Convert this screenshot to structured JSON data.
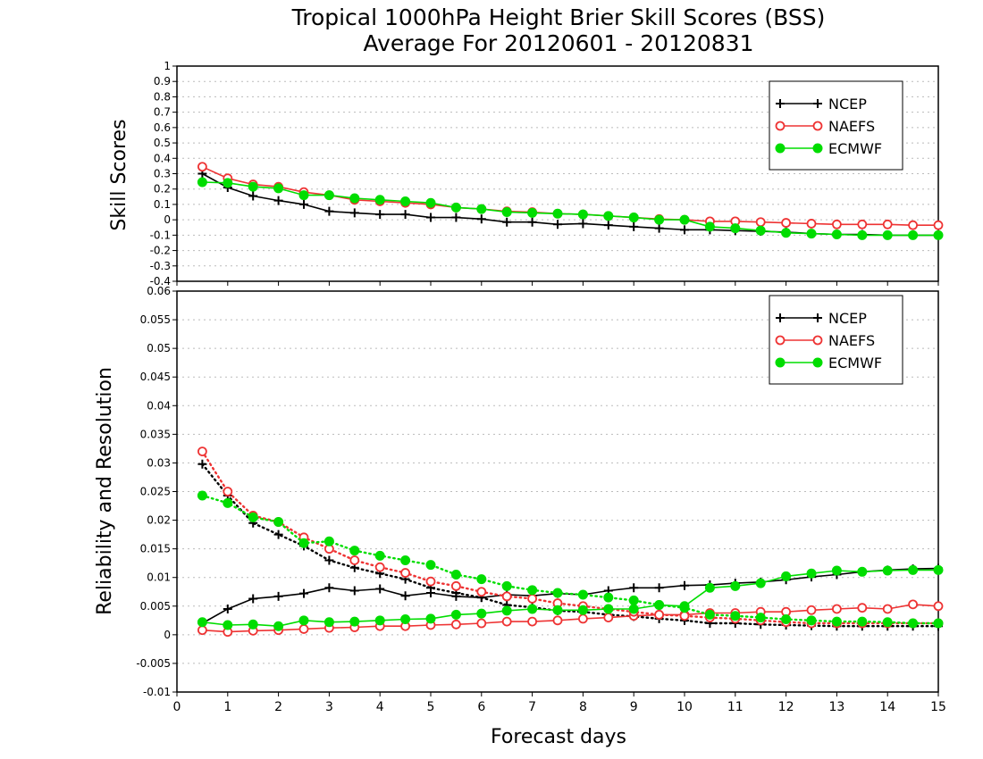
{
  "title_line1": "Tropical 1000hPa Height Brier Skill Scores (BSS)",
  "title_line2": "Average For 20120601 - 20120831",
  "xlabel": "Forecast days",
  "colors": {
    "NCEP": "#000000",
    "NAEFS": "#ee3333",
    "ECMWF": "#00dd00",
    "grid": "#bbbbbb"
  },
  "chart_data": [
    {
      "type": "line",
      "panel": "top",
      "ylabel": "Skill Scores",
      "xlim": [
        0,
        15
      ],
      "ylim": [
        -0.4,
        1
      ],
      "xticks": [
        "0",
        "1",
        "2",
        "3",
        "4",
        "5",
        "6",
        "7",
        "8",
        "9",
        "10",
        "11",
        "12",
        "13",
        "14",
        "15"
      ],
      "yticks": [
        "-0.4",
        "-0.3",
        "-0.2",
        "-0.1",
        "0",
        "0.1",
        "0.2",
        "0.3",
        "0.4",
        "0.5",
        "0.6",
        "0.7",
        "0.8",
        "0.9",
        "1"
      ],
      "grid": true,
      "legend_position": "top-right",
      "x": [
        0.5,
        1,
        1.5,
        2,
        2.5,
        3,
        3.5,
        4,
        4.5,
        5,
        5.5,
        6,
        6.5,
        7,
        7.5,
        8,
        8.5,
        9,
        9.5,
        10,
        10.5,
        11,
        11.5,
        12,
        12.5,
        13,
        13.5,
        14,
        14.5,
        15
      ],
      "series": [
        {
          "name": "NCEP",
          "style": "solid",
          "marker": "plus",
          "values": [
            0.3,
            0.21,
            0.155,
            0.125,
            0.1,
            0.055,
            0.045,
            0.035,
            0.035,
            0.015,
            0.015,
            0.005,
            -0.015,
            -0.015,
            -0.03,
            -0.025,
            -0.035,
            -0.045,
            -0.055,
            -0.065,
            -0.065,
            -0.07,
            -0.075,
            -0.08,
            -0.09,
            -0.095,
            -0.095,
            -0.1,
            -0.1,
            -0.1
          ]
        },
        {
          "name": "NAEFS",
          "style": "solid",
          "marker": "open-circle",
          "values": [
            0.345,
            0.27,
            0.23,
            0.215,
            0.18,
            0.16,
            0.13,
            0.12,
            0.11,
            0.1,
            0.08,
            0.07,
            0.055,
            0.05,
            0.04,
            0.035,
            0.025,
            0.015,
            0.005,
            0.0,
            -0.01,
            -0.01,
            -0.015,
            -0.02,
            -0.025,
            -0.03,
            -0.03,
            -0.03,
            -0.035,
            -0.035
          ]
        },
        {
          "name": "ECMWF",
          "style": "solid",
          "marker": "filled-circle",
          "values": [
            0.245,
            0.24,
            0.215,
            0.205,
            0.16,
            0.16,
            0.14,
            0.13,
            0.12,
            0.11,
            0.08,
            0.07,
            0.05,
            0.045,
            0.04,
            0.035,
            0.025,
            0.015,
            0.0,
            0.0,
            -0.045,
            -0.055,
            -0.07,
            -0.085,
            -0.09,
            -0.095,
            -0.1,
            -0.1,
            -0.1,
            -0.1
          ]
        }
      ]
    },
    {
      "type": "line",
      "panel": "bottom",
      "ylabel": "Reliability and Resolution",
      "xlim": [
        0,
        15
      ],
      "ylim": [
        -0.01,
        0.06
      ],
      "xticks": [
        "0",
        "1",
        "2",
        "3",
        "4",
        "5",
        "6",
        "7",
        "8",
        "9",
        "10",
        "11",
        "12",
        "13",
        "14",
        "15"
      ],
      "yticks": [
        "-0.01",
        "-0.005",
        "0",
        "0.005",
        "0.01",
        "0.015",
        "0.02",
        "0.025",
        "0.03",
        "0.035",
        "0.04",
        "0.045",
        "0.05",
        "0.055",
        "0.06"
      ],
      "grid": true,
      "legend_position": "top-right",
      "x": [
        0.5,
        1,
        1.5,
        2,
        2.5,
        3,
        3.5,
        4,
        4.5,
        5,
        5.5,
        6,
        6.5,
        7,
        7.5,
        8,
        8.5,
        9,
        9.5,
        10,
        10.5,
        11,
        11.5,
        12,
        12.5,
        13,
        13.5,
        14,
        14.5,
        15
      ],
      "series": [
        {
          "name": "NCEP",
          "style": "solid",
          "marker": "plus",
          "values": [
            0.002,
            0.0045,
            0.0063,
            0.0067,
            0.0072,
            0.0082,
            0.0077,
            0.008,
            0.0068,
            0.0073,
            0.0067,
            0.0065,
            0.007,
            0.0068,
            0.0072,
            0.007,
            0.0077,
            0.0082,
            0.0082,
            0.0086,
            0.0087,
            0.009,
            0.0092,
            0.0096,
            0.0101,
            0.0105,
            0.011,
            0.0113,
            0.0115,
            0.0116
          ]
        },
        {
          "name": "NCEP",
          "style": "dotted",
          "marker": "plus",
          "values": [
            0.0298,
            0.0243,
            0.0195,
            0.0175,
            0.0155,
            0.013,
            0.0117,
            0.0107,
            0.0097,
            0.0082,
            0.0073,
            0.0065,
            0.0052,
            0.0048,
            0.0042,
            0.004,
            0.0035,
            0.0032,
            0.0028,
            0.0025,
            0.002,
            0.002,
            0.0018,
            0.0017,
            0.0016,
            0.0015,
            0.0015,
            0.0015,
            0.0015,
            0.0015
          ]
        },
        {
          "name": "NAEFS",
          "style": "solid",
          "marker": "open-circle",
          "values": [
            0.0008,
            0.0005,
            0.0007,
            0.0008,
            0.001,
            0.0012,
            0.0013,
            0.0015,
            0.0015,
            0.0017,
            0.0018,
            0.002,
            0.0023,
            0.0023,
            0.0025,
            0.0028,
            0.003,
            0.0033,
            0.0035,
            0.0035,
            0.0038,
            0.0038,
            0.004,
            0.004,
            0.0043,
            0.0045,
            0.0047,
            0.0045,
            0.0053,
            0.005
          ]
        },
        {
          "name": "NAEFS",
          "style": "dotted",
          "marker": "open-circle",
          "values": [
            0.032,
            0.025,
            0.0208,
            0.0197,
            0.017,
            0.015,
            0.013,
            0.0118,
            0.0108,
            0.0093,
            0.0085,
            0.0075,
            0.0067,
            0.0063,
            0.0055,
            0.005,
            0.0045,
            0.004,
            0.0035,
            0.0033,
            0.003,
            0.0028,
            0.0025,
            0.0022,
            0.002,
            0.002,
            0.002,
            0.002,
            0.002,
            0.002
          ]
        },
        {
          "name": "ECMWF",
          "style": "solid",
          "marker": "filled-circle",
          "values": [
            0.0022,
            0.0017,
            0.0018,
            0.0015,
            0.0025,
            0.0022,
            0.0023,
            0.0025,
            0.0027,
            0.0028,
            0.0035,
            0.0037,
            0.0042,
            0.0045,
            0.0043,
            0.0043,
            0.0045,
            0.0045,
            0.0052,
            0.005,
            0.0082,
            0.0085,
            0.009,
            0.0102,
            0.0107,
            0.0112,
            0.011,
            0.0112,
            0.0113,
            0.0113
          ]
        },
        {
          "name": "ECMWF",
          "style": "dotted",
          "marker": "filled-circle",
          "values": [
            0.0243,
            0.023,
            0.0205,
            0.0197,
            0.016,
            0.0163,
            0.0147,
            0.0138,
            0.013,
            0.0122,
            0.0105,
            0.0097,
            0.0085,
            0.0078,
            0.0073,
            0.007,
            0.0065,
            0.006,
            0.0052,
            0.0047,
            0.0035,
            0.0033,
            0.003,
            0.0027,
            0.0025,
            0.0023,
            0.0023,
            0.0022,
            0.002,
            0.002
          ]
        }
      ]
    }
  ]
}
